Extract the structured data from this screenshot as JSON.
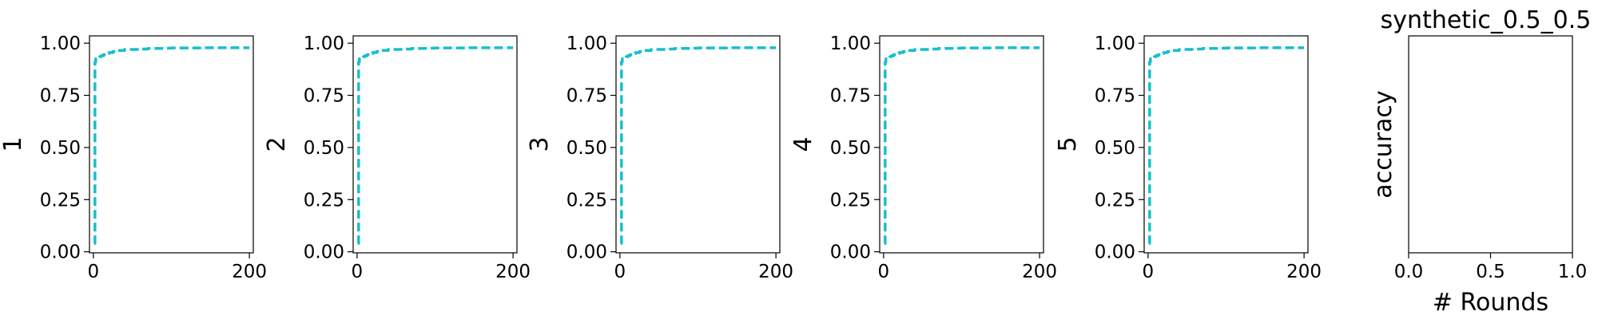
{
  "figure": {
    "line_color": "#17becf"
  },
  "chart_data": [
    {
      "type": "line",
      "title": "",
      "xlabel": "",
      "ylabel": "1",
      "xlim": [
        -5,
        205
      ],
      "ylim": [
        -0.005,
        1.035
      ],
      "xticks": [
        0,
        200
      ],
      "xtick_labels": [
        "0",
        "200"
      ],
      "yticks": [
        0.0,
        0.25,
        0.5,
        0.75,
        1.0
      ],
      "ytick_labels": [
        "0.00",
        "0.25",
        "0.50",
        "0.75",
        "1.00"
      ],
      "series": [
        {
          "style": "dashed",
          "x": [
            1,
            2,
            3,
            5,
            8,
            10,
            13,
            15,
            18,
            20,
            25,
            30,
            35,
            40,
            50,
            60,
            70,
            80,
            90,
            100,
            120,
            140,
            160,
            180,
            200
          ],
          "y": [
            0.04,
            0.91,
            0.925,
            0.93,
            0.935,
            0.94,
            0.945,
            0.945,
            0.95,
            0.955,
            0.96,
            0.965,
            0.965,
            0.97,
            0.97,
            0.972,
            0.975,
            0.975,
            0.976,
            0.977,
            0.977,
            0.978,
            0.978,
            0.978,
            0.978
          ]
        }
      ]
    },
    {
      "type": "line",
      "title": "",
      "xlabel": "",
      "ylabel": "2",
      "xlim": [
        -5,
        205
      ],
      "ylim": [
        -0.005,
        1.035
      ],
      "xticks": [
        0,
        200
      ],
      "xtick_labels": [
        "0",
        "200"
      ],
      "yticks": [
        0.0,
        0.25,
        0.5,
        0.75,
        1.0
      ],
      "ytick_labels": [
        "0.00",
        "0.25",
        "0.50",
        "0.75",
        "1.00"
      ],
      "series": [
        {
          "style": "dashed",
          "x": [
            1,
            2,
            3,
            5,
            8,
            10,
            13,
            15,
            18,
            20,
            25,
            30,
            35,
            40,
            50,
            60,
            70,
            80,
            90,
            100,
            120,
            140,
            160,
            180,
            200
          ],
          "y": [
            0.04,
            0.91,
            0.925,
            0.93,
            0.935,
            0.94,
            0.945,
            0.945,
            0.95,
            0.955,
            0.96,
            0.965,
            0.965,
            0.97,
            0.97,
            0.972,
            0.975,
            0.975,
            0.976,
            0.977,
            0.977,
            0.978,
            0.978,
            0.978,
            0.978
          ]
        }
      ]
    },
    {
      "type": "line",
      "title": "",
      "xlabel": "",
      "ylabel": "3",
      "xlim": [
        -5,
        205
      ],
      "ylim": [
        -0.005,
        1.035
      ],
      "xticks": [
        0,
        200
      ],
      "xtick_labels": [
        "0",
        "200"
      ],
      "yticks": [
        0.0,
        0.25,
        0.5,
        0.75,
        1.0
      ],
      "ytick_labels": [
        "0.00",
        "0.25",
        "0.50",
        "0.75",
        "1.00"
      ],
      "series": [
        {
          "style": "dashed",
          "x": [
            1,
            2,
            3,
            5,
            8,
            10,
            13,
            15,
            18,
            20,
            25,
            30,
            35,
            40,
            50,
            60,
            70,
            80,
            90,
            100,
            120,
            140,
            160,
            180,
            200
          ],
          "y": [
            0.04,
            0.91,
            0.925,
            0.93,
            0.935,
            0.94,
            0.945,
            0.945,
            0.95,
            0.955,
            0.96,
            0.965,
            0.965,
            0.97,
            0.97,
            0.972,
            0.975,
            0.975,
            0.976,
            0.977,
            0.977,
            0.978,
            0.978,
            0.978,
            0.978
          ]
        }
      ]
    },
    {
      "type": "line",
      "title": "",
      "xlabel": "",
      "ylabel": "4",
      "xlim": [
        -5,
        205
      ],
      "ylim": [
        -0.005,
        1.035
      ],
      "xticks": [
        0,
        200
      ],
      "xtick_labels": [
        "0",
        "200"
      ],
      "yticks": [
        0.0,
        0.25,
        0.5,
        0.75,
        1.0
      ],
      "ytick_labels": [
        "0.00",
        "0.25",
        "0.50",
        "0.75",
        "1.00"
      ],
      "series": [
        {
          "style": "dashed",
          "x": [
            1,
            2,
            3,
            5,
            8,
            10,
            13,
            15,
            18,
            20,
            25,
            30,
            35,
            40,
            50,
            60,
            70,
            80,
            90,
            100,
            120,
            140,
            160,
            180,
            200
          ],
          "y": [
            0.04,
            0.91,
            0.925,
            0.93,
            0.935,
            0.94,
            0.945,
            0.945,
            0.95,
            0.955,
            0.96,
            0.965,
            0.965,
            0.97,
            0.97,
            0.972,
            0.975,
            0.975,
            0.976,
            0.977,
            0.977,
            0.978,
            0.978,
            0.978,
            0.978
          ]
        }
      ]
    },
    {
      "type": "line",
      "title": "",
      "xlabel": "",
      "ylabel": "5",
      "xlim": [
        -5,
        205
      ],
      "ylim": [
        -0.005,
        1.035
      ],
      "xticks": [
        0,
        200
      ],
      "xtick_labels": [
        "0",
        "200"
      ],
      "yticks": [
        0.0,
        0.25,
        0.5,
        0.75,
        1.0
      ],
      "ytick_labels": [
        "0.00",
        "0.25",
        "0.50",
        "0.75",
        "1.00"
      ],
      "series": [
        {
          "style": "dashed",
          "x": [
            1,
            2,
            3,
            5,
            8,
            10,
            13,
            15,
            18,
            20,
            25,
            30,
            35,
            40,
            50,
            60,
            70,
            80,
            90,
            100,
            120,
            140,
            160,
            180,
            200
          ],
          "y": [
            0.04,
            0.91,
            0.925,
            0.93,
            0.935,
            0.94,
            0.945,
            0.945,
            0.95,
            0.955,
            0.96,
            0.965,
            0.965,
            0.97,
            0.97,
            0.972,
            0.975,
            0.975,
            0.976,
            0.977,
            0.977,
            0.978,
            0.978,
            0.978,
            0.978
          ]
        }
      ]
    },
    {
      "type": "line",
      "title": "synthetic_0.5_0.5",
      "xlabel": "# Rounds",
      "ylabel": "accuracy",
      "xlim": [
        0,
        1
      ],
      "ylim": [
        0,
        1
      ],
      "xticks": [
        0,
        0.5,
        1
      ],
      "xtick_labels": [
        "0.0",
        "0.5",
        "1.0"
      ],
      "yticks": [],
      "ytick_labels": [],
      "series": []
    }
  ]
}
